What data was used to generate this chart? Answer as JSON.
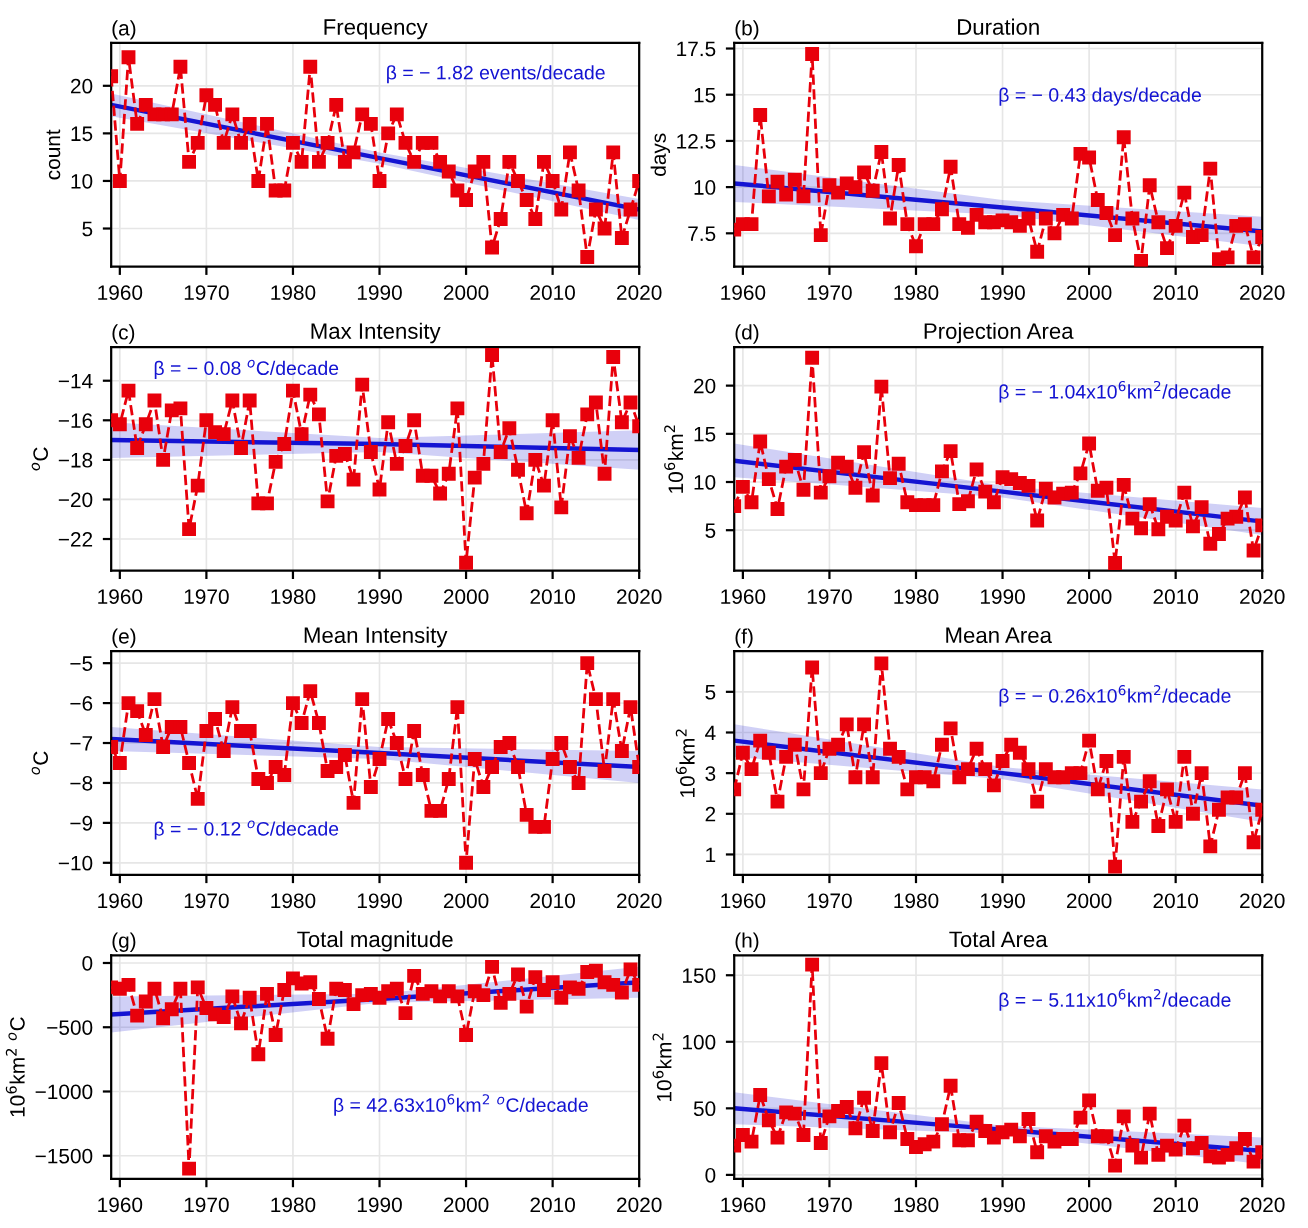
{
  "chart_data": [
    {
      "type": "line",
      "title": "Frequency",
      "ylabel": "count",
      "annotations": [
        "(a)",
        "β = − 1.82 events/decade"
      ],
      "xlim": [
        1959,
        2020
      ],
      "xticks": [
        1960,
        1970,
        1980,
        1990,
        2000,
        2010,
        2020
      ],
      "ylim": [
        1,
        24.5
      ],
      "yticks": [
        5,
        10,
        15,
        20
      ],
      "grid": true,
      "x": [
        1959,
        1960,
        1961,
        1962,
        1963,
        1964,
        1965,
        1966,
        1967,
        1968,
        1969,
        1970,
        1971,
        1972,
        1973,
        1974,
        1975,
        1976,
        1977,
        1978,
        1979,
        1980,
        1981,
        1982,
        1983,
        1984,
        1985,
        1986,
        1987,
        1988,
        1989,
        1990,
        1991,
        1992,
        1993,
        1994,
        1995,
        1996,
        1997,
        1998,
        1999,
        2000,
        2001,
        2002,
        2003,
        2004,
        2005,
        2006,
        2007,
        2008,
        2009,
        2010,
        2011,
        2012,
        2013,
        2014,
        2015,
        2016,
        2017,
        2018,
        2019,
        2020
      ],
      "series": [
        {
          "color": "#e8000b",
          "marker": "square",
          "line_style": "dashed",
          "values": [
            21,
            10,
            23,
            16,
            18,
            17,
            17,
            17,
            22,
            12,
            14,
            19,
            18,
            14,
            17,
            14,
            16,
            10,
            16,
            9,
            9,
            14,
            12,
            22,
            12,
            14,
            18,
            12,
            13,
            17,
            16,
            10,
            15,
            17,
            14,
            12,
            14,
            14,
            12,
            11,
            9,
            8,
            11,
            12,
            3,
            6,
            12,
            10,
            8,
            6,
            12,
            10,
            7,
            13,
            9,
            2,
            7,
            5,
            13,
            4,
            7,
            10
          ]
        },
        {
          "type": "line",
          "color": "#1414d2",
          "x": [
            1959,
            1990,
            2020
          ],
          "values": [
            18,
            12.4,
            7
          ],
          "lower": [
            16.8,
            11.8,
            5.9
          ],
          "upper": [
            19.2,
            13.0,
            8.1
          ]
        }
      ]
    },
    {
      "type": "line",
      "title": "Duration",
      "ylabel": "days",
      "annotations": [
        "(b)",
        "β = − 0.43 days/decade"
      ],
      "xlim": [
        1959,
        2020
      ],
      "xticks": [
        1960,
        1970,
        1980,
        1990,
        2000,
        2010,
        2020
      ],
      "ylim": [
        5.7,
        17.8
      ],
      "yticks": [
        7.5,
        10,
        12.5,
        15,
        17.5
      ],
      "grid": true,
      "x": [
        1959,
        1960,
        1961,
        1962,
        1963,
        1964,
        1965,
        1966,
        1967,
        1968,
        1969,
        1970,
        1971,
        1972,
        1973,
        1974,
        1975,
        1976,
        1977,
        1978,
        1979,
        1980,
        1981,
        1982,
        1983,
        1984,
        1985,
        1986,
        1987,
        1988,
        1989,
        1990,
        1991,
        1992,
        1993,
        1994,
        1995,
        1996,
        1997,
        1998,
        1999,
        2000,
        2001,
        2002,
        2003,
        2004,
        2005,
        2006,
        2007,
        2008,
        2009,
        2010,
        2011,
        2012,
        2013,
        2014,
        2015,
        2016,
        2017,
        2018,
        2019,
        2020
      ],
      "series": [
        {
          "color": "#e8000b",
          "marker": "square",
          "line_style": "dashed",
          "values": [
            7.7,
            8.0,
            8.0,
            13.9,
            9.5,
            10.3,
            9.6,
            10.4,
            9.5,
            17.2,
            7.4,
            10.1,
            9.7,
            10.2,
            10.0,
            10.8,
            9.8,
            11.9,
            8.3,
            11.2,
            8.0,
            6.8,
            8.0,
            8.0,
            8.8,
            11.1,
            8.0,
            7.8,
            8.5,
            8.1,
            8.1,
            8.2,
            8.1,
            7.9,
            8.3,
            6.5,
            8.3,
            7.5,
            8.5,
            8.3,
            11.8,
            11.6,
            9.3,
            8.6,
            7.4,
            12.7,
            8.3,
            6.0,
            10.1,
            8.1,
            6.7,
            7.9,
            9.7,
            7.3,
            7.4,
            11.0,
            6.1,
            6.2,
            7.9,
            8.0,
            6.2,
            7.3
          ]
        },
        {
          "type": "line",
          "color": "#1414d2",
          "x": [
            1959,
            1990,
            2020
          ],
          "values": [
            10.2,
            8.9,
            7.6
          ],
          "lower": [
            9.2,
            8.5,
            6.8
          ],
          "upper": [
            11.2,
            9.3,
            8.4
          ]
        }
      ]
    },
    {
      "type": "line",
      "title": "Max Intensity",
      "ylabel": "$^{o}$C",
      "annotations": [
        "(c)",
        "β = − 0.08 $^{o}$C/decade"
      ],
      "xlim": [
        1959,
        2020
      ],
      "xticks": [
        1960,
        1970,
        1980,
        1990,
        2000,
        2010,
        2020
      ],
      "ylim": [
        -23.6,
        -12.3
      ],
      "yticks": [
        {
          "value": -22,
          "label": "−22"
        },
        {
          "value": -20,
          "label": "−20"
        },
        {
          "value": -18,
          "label": "−18"
        },
        {
          "value": -16,
          "label": "−16"
        },
        {
          "value": -14,
          "label": "−14"
        }
      ],
      "grid": true,
      "x": [
        1959,
        1960,
        1961,
        1962,
        1963,
        1964,
        1965,
        1966,
        1967,
        1968,
        1969,
        1970,
        1971,
        1972,
        1973,
        1974,
        1975,
        1976,
        1977,
        1978,
        1979,
        1980,
        1981,
        1982,
        1983,
        1984,
        1985,
        1986,
        1987,
        1988,
        1989,
        1990,
        1991,
        1992,
        1993,
        1994,
        1995,
        1996,
        1997,
        1998,
        1999,
        2000,
        2001,
        2002,
        2003,
        2004,
        2005,
        2006,
        2007,
        2008,
        2009,
        2010,
        2011,
        2012,
        2013,
        2014,
        2015,
        2016,
        2017,
        2018,
        2019,
        2020
      ],
      "series": [
        {
          "color": "#e8000b",
          "marker": "square",
          "line_style": "dashed",
          "values": [
            -16.0,
            -16.2,
            -14.5,
            -17.4,
            -16.2,
            -15.0,
            -18.0,
            -15.5,
            -15.4,
            -21.5,
            -19.3,
            -16.0,
            -16.6,
            -16.7,
            -15.0,
            -17.4,
            -15.0,
            -20.2,
            -20.2,
            -18.1,
            -17.2,
            -14.5,
            -16.7,
            -14.7,
            -15.7,
            -20.1,
            -17.8,
            -17.7,
            -19.0,
            -14.2,
            -17.6,
            -19.5,
            -16.1,
            -18.2,
            -17.3,
            -16.0,
            -18.8,
            -18.8,
            -19.7,
            -18.7,
            -15.4,
            -23.2,
            -18.9,
            -18.2,
            -12.7,
            -17.6,
            -16.4,
            -18.5,
            -20.7,
            -18.0,
            -19.3,
            -16.0,
            -20.4,
            -16.8,
            -17.9,
            -15.7,
            -15.1,
            -18.7,
            -12.8,
            -16.1,
            -15.1,
            -16.3
          ]
        },
        {
          "type": "line",
          "color": "#1414d2",
          "x": [
            1959,
            1990,
            2020
          ],
          "values": [
            -17.0,
            -17.2,
            -17.5
          ],
          "lower": [
            -17.9,
            -17.6,
            -18.5
          ],
          "upper": [
            -16.1,
            -16.9,
            -16.5
          ]
        }
      ]
    },
    {
      "type": "line",
      "title": "Projection Area",
      "ylabel": "10$^{6}$km$^{2}$",
      "annotations": [
        "(d)",
        "β = − 1.04x10$^{6}$km$^{2}$/decade"
      ],
      "xlim": [
        1959,
        2020
      ],
      "xticks": [
        1960,
        1970,
        1980,
        1990,
        2000,
        2010,
        2020
      ],
      "ylim": [
        0.8,
        24
      ],
      "yticks": [
        5,
        10,
        15,
        20
      ],
      "grid": true,
      "x": [
        1959,
        1960,
        1961,
        1962,
        1963,
        1964,
        1965,
        1966,
        1967,
        1968,
        1969,
        1970,
        1971,
        1972,
        1973,
        1974,
        1975,
        1976,
        1977,
        1978,
        1979,
        1980,
        1981,
        1982,
        1983,
        1984,
        1985,
        1986,
        1987,
        1988,
        1989,
        1990,
        1991,
        1992,
        1993,
        1994,
        1995,
        1996,
        1997,
        1998,
        1999,
        2000,
        2001,
        2002,
        2003,
        2004,
        2005,
        2006,
        2007,
        2008,
        2009,
        2010,
        2011,
        2012,
        2013,
        2014,
        2015,
        2016,
        2017,
        2018,
        2019,
        2020
      ],
      "series": [
        {
          "color": "#e8000b",
          "marker": "square",
          "line_style": "dashed",
          "values": [
            7.5,
            9.5,
            7.9,
            14.2,
            10.3,
            7.2,
            11.6,
            12.3,
            9.2,
            22.9,
            8.9,
            10.6,
            12.0,
            11.6,
            9.4,
            13.1,
            8.6,
            19.9,
            10.4,
            11.9,
            7.9,
            7.6,
            7.6,
            7.6,
            11.1,
            13.2,
            7.7,
            8.0,
            11.3,
            9.0,
            7.9,
            10.5,
            10.3,
            9.9,
            9.6,
            6.0,
            9.3,
            8.4,
            8.8,
            8.9,
            10.9,
            14.0,
            9.1,
            9.4,
            1.6,
            9.7,
            6.2,
            5.2,
            7.7,
            5.1,
            6.4,
            6.0,
            8.9,
            5.4,
            7.4,
            3.6,
            4.6,
            6.2,
            6.4,
            8.4,
            2.9,
            5.5
          ]
        },
        {
          "type": "line",
          "color": "#1414d2",
          "x": [
            1959,
            1990,
            2020
          ],
          "values": [
            12.2,
            9.0,
            5.9
          ],
          "lower": [
            10.5,
            8.4,
            4.5
          ],
          "upper": [
            14.0,
            9.6,
            7.3
          ]
        }
      ]
    },
    {
      "type": "line",
      "title": "Mean Intensity",
      "ylabel": "$^{o}$C",
      "annotations": [
        "(e)",
        "β = − 0.12 $^{o}$C/decade"
      ],
      "xlim": [
        1959,
        2020
      ],
      "xticks": [
        1960,
        1970,
        1980,
        1990,
        2000,
        2010,
        2020
      ],
      "ylim": [
        -10.3,
        -4.7
      ],
      "yticks": [
        {
          "value": -10,
          "label": "−10"
        },
        {
          "value": -9,
          "label": "−9"
        },
        {
          "value": -8,
          "label": "−8"
        },
        {
          "value": -7,
          "label": "−7"
        },
        {
          "value": -6,
          "label": "−6"
        },
        {
          "value": -5,
          "label": "−5"
        }
      ],
      "grid": true,
      "x": [
        1959,
        1960,
        1961,
        1962,
        1963,
        1964,
        1965,
        1966,
        1967,
        1968,
        1969,
        1970,
        1971,
        1972,
        1973,
        1974,
        1975,
        1976,
        1977,
        1978,
        1979,
        1980,
        1981,
        1982,
        1983,
        1984,
        1985,
        1986,
        1987,
        1988,
        1989,
        1990,
        1991,
        1992,
        1993,
        1994,
        1995,
        1996,
        1997,
        1998,
        1999,
        2000,
        2001,
        2002,
        2003,
        2004,
        2005,
        2006,
        2007,
        2008,
        2009,
        2010,
        2011,
        2012,
        2013,
        2014,
        2015,
        2016,
        2017,
        2018,
        2019,
        2020
      ],
      "series": [
        {
          "color": "#e8000b",
          "marker": "square",
          "line_style": "dashed",
          "values": [
            -7.1,
            -7.5,
            -6.0,
            -6.2,
            -6.8,
            -5.9,
            -7.1,
            -6.6,
            -6.6,
            -7.5,
            -8.4,
            -6.7,
            -6.4,
            -7.2,
            -6.1,
            -6.7,
            -6.7,
            -7.9,
            -8.0,
            -7.6,
            -7.8,
            -6.0,
            -6.5,
            -5.7,
            -6.5,
            -7.7,
            -7.6,
            -7.3,
            -8.5,
            -5.9,
            -8.1,
            -7.4,
            -6.4,
            -7.0,
            -7.9,
            -6.7,
            -7.8,
            -8.7,
            -8.7,
            -7.9,
            -6.1,
            -10.0,
            -7.4,
            -8.1,
            -7.6,
            -7.1,
            -7.0,
            -7.6,
            -8.8,
            -9.1,
            -9.1,
            -7.4,
            -7.0,
            -7.6,
            -8.0,
            -5.0,
            -5.9,
            -7.7,
            -5.9,
            -7.2,
            -6.1,
            -7.6
          ]
        },
        {
          "type": "line",
          "color": "#1414d2",
          "x": [
            1959,
            1990,
            2020
          ],
          "values": [
            -6.9,
            -7.25,
            -7.6
          ],
          "lower": [
            -7.2,
            -7.4,
            -8.0
          ],
          "upper": [
            -6.6,
            -7.1,
            -7.2
          ]
        }
      ]
    },
    {
      "type": "line",
      "title": "Mean Area",
      "ylabel": "10$^{6}$km$^{2}$",
      "annotations": [
        "(f)",
        "β = − 0.26x10$^{6}$km$^{2}$/decade"
      ],
      "xlim": [
        1959,
        2020
      ],
      "xticks": [
        1960,
        1970,
        1980,
        1990,
        2000,
        2010,
        2020
      ],
      "ylim": [
        0.5,
        6.0
      ],
      "yticks": [
        1,
        2,
        3,
        4,
        5
      ],
      "grid": true,
      "x": [
        1959,
        1960,
        1961,
        1962,
        1963,
        1964,
        1965,
        1966,
        1967,
        1968,
        1969,
        1970,
        1971,
        1972,
        1973,
        1974,
        1975,
        1976,
        1977,
        1978,
        1979,
        1980,
        1981,
        1982,
        1983,
        1984,
        1985,
        1986,
        1987,
        1988,
        1989,
        1990,
        1991,
        1992,
        1993,
        1994,
        1995,
        1996,
        1997,
        1998,
        1999,
        2000,
        2001,
        2002,
        2003,
        2004,
        2005,
        2006,
        2007,
        2008,
        2009,
        2010,
        2011,
        2012,
        2013,
        2014,
        2015,
        2016,
        2017,
        2018,
        2019,
        2020
      ],
      "series": [
        {
          "color": "#e8000b",
          "marker": "square",
          "line_style": "dashed",
          "values": [
            2.6,
            3.5,
            3.1,
            3.8,
            3.5,
            2.3,
            3.4,
            3.7,
            2.6,
            5.6,
            3.0,
            3.6,
            3.7,
            4.2,
            2.9,
            4.2,
            2.9,
            5.7,
            3.6,
            3.4,
            2.6,
            2.9,
            2.9,
            2.8,
            3.7,
            4.1,
            2.9,
            3.1,
            3.6,
            3.1,
            2.7,
            3.3,
            3.7,
            3.5,
            3.1,
            2.3,
            3.1,
            2.9,
            2.9,
            3.0,
            3.0,
            3.8,
            2.6,
            3.3,
            0.7,
            3.4,
            1.8,
            2.3,
            2.8,
            1.7,
            2.6,
            1.8,
            3.4,
            2.0,
            3.0,
            1.2,
            2.1,
            2.4,
            2.4,
            3.0,
            1.3,
            2.1
          ]
        },
        {
          "type": "line",
          "color": "#1414d2",
          "x": [
            1959,
            1990,
            2020
          ],
          "values": [
            3.8,
            3.0,
            2.2
          ],
          "lower": [
            3.4,
            2.85,
            1.8
          ],
          "upper": [
            4.2,
            3.15,
            2.6
          ]
        }
      ]
    },
    {
      "type": "line",
      "title": "Total magnitude",
      "ylabel": "10$^{6}$km$^{2}$ $^{o}$C",
      "annotations": [
        "(g)",
        "β = 42.63x10$^{6}$km$^{2}$ $^{o}$C/decade"
      ],
      "xlim": [
        1959,
        2020
      ],
      "xticks": [
        1960,
        1970,
        1980,
        1990,
        2000,
        2010,
        2020
      ],
      "ylim": [
        -1680,
        60
      ],
      "yticks": [
        {
          "value": -1500,
          "label": "−1500"
        },
        {
          "value": -1000,
          "label": "−1000"
        },
        {
          "value": -500,
          "label": "−500"
        },
        0
      ],
      "grid": true,
      "x": [
        1959,
        1960,
        1961,
        1962,
        1963,
        1964,
        1965,
        1966,
        1967,
        1968,
        1969,
        1970,
        1971,
        1972,
        1973,
        1974,
        1975,
        1976,
        1977,
        1978,
        1979,
        1980,
        1981,
        1982,
        1983,
        1984,
        1985,
        1986,
        1987,
        1988,
        1989,
        1990,
        1991,
        1992,
        1993,
        1994,
        1995,
        1996,
        1997,
        1998,
        1999,
        2000,
        2001,
        2002,
        2003,
        2004,
        2005,
        2006,
        2007,
        2008,
        2009,
        2010,
        2011,
        2012,
        2013,
        2014,
        2015,
        2016,
        2017,
        2018,
        2019,
        2020
      ],
      "series": [
        {
          "color": "#e8000b",
          "marker": "square",
          "line_style": "dashed",
          "values": [
            -190,
            -200,
            -170,
            -410,
            -300,
            -200,
            -430,
            -360,
            -200,
            -1600,
            -190,
            -350,
            -400,
            -420,
            -260,
            -470,
            -270,
            -710,
            -240,
            -560,
            -210,
            -120,
            -160,
            -150,
            -280,
            -590,
            -200,
            -210,
            -320,
            -250,
            -240,
            -270,
            -220,
            -200,
            -390,
            -100,
            -240,
            -220,
            -260,
            -220,
            -260,
            -560,
            -220,
            -250,
            -30,
            -310,
            -240,
            -90,
            -340,
            -110,
            -210,
            -150,
            -270,
            -190,
            -200,
            -70,
            -60,
            -150,
            -170,
            -230,
            -50,
            -170
          ]
        },
        {
          "type": "line",
          "color": "#1414d2",
          "x": [
            1959,
            1990,
            2020
          ],
          "values": [
            -400,
            -280,
            -150
          ],
          "lower": [
            -540,
            -310,
            -270
          ],
          "upper": [
            -260,
            -240,
            -30
          ]
        }
      ]
    },
    {
      "type": "line",
      "title": "Total Area",
      "ylabel": "10$^{6}$km$^{2}$",
      "annotations": [
        "(h)",
        "β = − 5.11x10$^{6}$km$^{2}$/decade"
      ],
      "xlim": [
        1959,
        2020
      ],
      "xticks": [
        1960,
        1970,
        1980,
        1990,
        2000,
        2010,
        2020
      ],
      "ylim": [
        -3,
        165
      ],
      "yticks": [
        0,
        50,
        100,
        150
      ],
      "grid": true,
      "x": [
        1959,
        1960,
        1961,
        1962,
        1963,
        1964,
        1965,
        1966,
        1967,
        1968,
        1969,
        1970,
        1971,
        1972,
        1973,
        1974,
        1975,
        1976,
        1977,
        1978,
        1979,
        1980,
        1981,
        1982,
        1983,
        1984,
        1985,
        1986,
        1987,
        1988,
        1989,
        1990,
        1991,
        1992,
        1993,
        1994,
        1995,
        1996,
        1997,
        1998,
        1999,
        2000,
        2001,
        2002,
        2003,
        2004,
        2005,
        2006,
        2007,
        2008,
        2009,
        2010,
        2011,
        2012,
        2013,
        2014,
        2015,
        2016,
        2017,
        2018,
        2019,
        2020
      ],
      "series": [
        {
          "color": "#e8000b",
          "marker": "square",
          "line_style": "dashed",
          "values": [
            22,
            30,
            25,
            60,
            41,
            28,
            47,
            46,
            30,
            158,
            24,
            44,
            48,
            51,
            35,
            58,
            33,
            84,
            32,
            54,
            27,
            21,
            23,
            25,
            38,
            67,
            26,
            26,
            40,
            33,
            28,
            32,
            34,
            29,
            42,
            17,
            29,
            25,
            27,
            27,
            43,
            56,
            29,
            29,
            7,
            44,
            22,
            13,
            46,
            15,
            22,
            19,
            37,
            20,
            24,
            14,
            13,
            15,
            20,
            27,
            10,
            17
          ]
        },
        {
          "type": "line",
          "color": "#1414d2",
          "x": [
            1959,
            1990,
            2020
          ],
          "values": [
            50,
            34,
            18
          ],
          "lower": [
            38,
            31,
            8
          ],
          "upper": [
            62,
            37,
            28
          ]
        }
      ]
    }
  ]
}
